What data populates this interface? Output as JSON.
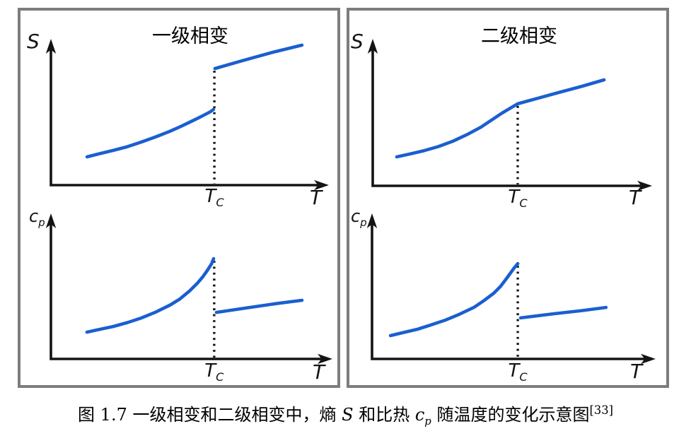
{
  "figure": {
    "caption": {
      "prefix": "图 1.7  一级相变和二级相变中，熵 ",
      "entropy_symbol": "S",
      "mid": " 和比热 ",
      "heat_base": "c",
      "heat_sub": "p",
      "suffix": " 随温度的变化示意图",
      "ref_superscript": "[33]"
    },
    "colors": {
      "curve": "#1a5fd0",
      "axis": "#141414",
      "dotted": "#141414",
      "panel_border": "#7d7d7d",
      "background": "#ffffff",
      "text": "#000000"
    },
    "note": "Schematic plots: axes unlabeled numerically; curve points given as fractions of plot area (x: 0 = y-axis, 1 = x-arrow tip; y: 0 = x-axis, 1 = y-arrow tip)."
  },
  "panels": [
    {
      "title": "一级相变"
    },
    {
      "title": "二级相变"
    }
  ],
  "chart_data": [
    {
      "id": "entropy-first-order",
      "type": "line",
      "panel_title": "一级相变",
      "ylabel_base": "S",
      "ylabel_sub": "",
      "xlabel": "T",
      "tc_base": "T",
      "tc_sub": "C",
      "x_range": [
        0,
        1
      ],
      "y_range": [
        0,
        1
      ],
      "grid": false,
      "legend": false,
      "x_tick_labels": [
        "T_C"
      ],
      "dotted_line": {
        "x": 0.588,
        "y_top": 0.797
      },
      "feature": "entropy S jumps discontinuously at Tc",
      "series": [
        {
          "name": "S below Tc",
          "points": [
            [
              0.13,
              0.193
            ],
            [
              0.175,
              0.215
            ],
            [
              0.224,
              0.237
            ],
            [
              0.275,
              0.263
            ],
            [
              0.326,
              0.295
            ],
            [
              0.377,
              0.33
            ],
            [
              0.427,
              0.367
            ],
            [
              0.468,
              0.402
            ],
            [
              0.504,
              0.435
            ],
            [
              0.533,
              0.462
            ],
            [
              0.555,
              0.483
            ],
            [
              0.572,
              0.5
            ],
            [
              0.585,
              0.517
            ]
          ]
        },
        {
          "name": "S above Tc",
          "points": [
            [
              0.59,
              0.797
            ],
            [
              0.693,
              0.853
            ],
            [
              0.798,
              0.908
            ],
            [
              0.903,
              0.957
            ]
          ]
        }
      ]
    },
    {
      "id": "specific-heat-first-order",
      "type": "line",
      "panel_title": "一级相变",
      "ylabel_base": "c",
      "ylabel_sub": "p",
      "xlabel": "T",
      "tc_base": "T",
      "tc_sub": "C",
      "x_range": [
        0,
        1
      ],
      "y_range": [
        0,
        1
      ],
      "grid": false,
      "legend": false,
      "x_tick_labels": [
        "T_C"
      ],
      "dotted_line": {
        "x": 0.58,
        "y_top": 0.689
      },
      "feature": "cp rises steeply toward Tc then drops discontinuously",
      "series": [
        {
          "name": "cp below Tc",
          "points": [
            [
              0.128,
              0.184
            ],
            [
              0.175,
              0.204
            ],
            [
              0.221,
              0.223
            ],
            [
              0.272,
              0.25
            ],
            [
              0.322,
              0.282
            ],
            [
              0.372,
              0.322
            ],
            [
              0.422,
              0.369
            ],
            [
              0.457,
              0.41
            ],
            [
              0.492,
              0.466
            ],
            [
              0.52,
              0.52
            ],
            [
              0.54,
              0.565
            ],
            [
              0.557,
              0.612
            ],
            [
              0.57,
              0.652
            ],
            [
              0.578,
              0.689
            ]
          ]
        },
        {
          "name": "cp above Tc",
          "points": [
            [
              0.588,
              0.32
            ],
            [
              0.7,
              0.352
            ],
            [
              0.8,
              0.38
            ],
            [
              0.892,
              0.403
            ]
          ]
        }
      ]
    },
    {
      "id": "entropy-second-order",
      "type": "line",
      "panel_title": "二级相变",
      "ylabel_base": "S",
      "ylabel_sub": "",
      "xlabel": "T",
      "tc_base": "T",
      "tc_sub": "C",
      "x_range": [
        0,
        1
      ],
      "y_range": [
        0,
        1
      ],
      "grid": false,
      "legend": false,
      "x_tick_labels": [
        "T_C"
      ],
      "dotted_line": {
        "x": 0.519,
        "y_top": 0.558
      },
      "feature": "S continuous with a kink (slope change) at Tc",
      "series": [
        {
          "name": "S continuous through Tc",
          "points": [
            [
              0.086,
              0.197
            ],
            [
              0.135,
              0.218
            ],
            [
              0.185,
              0.24
            ],
            [
              0.236,
              0.268
            ],
            [
              0.286,
              0.303
            ],
            [
              0.337,
              0.348
            ],
            [
              0.387,
              0.399
            ],
            [
              0.425,
              0.447
            ],
            [
              0.463,
              0.495
            ],
            [
              0.492,
              0.528
            ],
            [
              0.519,
              0.558
            ],
            [
              0.56,
              0.58
            ],
            [
              0.666,
              0.635
            ],
            [
              0.75,
              0.678
            ],
            [
              0.828,
              0.721
            ]
          ]
        }
      ]
    },
    {
      "id": "specific-heat-second-order",
      "type": "line",
      "panel_title": "二级相变",
      "ylabel_base": "c",
      "ylabel_sub": "p",
      "xlabel": "T",
      "tc_base": "T",
      "tc_sub": "C",
      "x_range": [
        0,
        1
      ],
      "y_range": [
        0,
        1
      ],
      "grid": false,
      "legend": false,
      "x_tick_labels": [
        "T_C"
      ],
      "dotted_line": {
        "x": 0.514,
        "y_top": 0.655
      },
      "feature": "cp rises steeply toward Tc then drops to a lower branch",
      "series": [
        {
          "name": "cp below Tc",
          "points": [
            [
              0.065,
              0.16
            ],
            [
              0.112,
              0.182
            ],
            [
              0.16,
              0.204
            ],
            [
              0.21,
              0.235
            ],
            [
              0.259,
              0.267
            ],
            [
              0.309,
              0.308
            ],
            [
              0.359,
              0.354
            ],
            [
              0.394,
              0.4
            ],
            [
              0.429,
              0.451
            ],
            [
              0.452,
              0.496
            ],
            [
              0.471,
              0.544
            ],
            [
              0.488,
              0.59
            ],
            [
              0.501,
              0.625
            ],
            [
              0.514,
              0.655
            ]
          ]
        },
        {
          "name": "cp above Tc",
          "points": [
            [
              0.524,
              0.282
            ],
            [
              0.64,
              0.31
            ],
            [
              0.74,
              0.332
            ],
            [
              0.825,
              0.354
            ]
          ]
        }
      ]
    }
  ]
}
